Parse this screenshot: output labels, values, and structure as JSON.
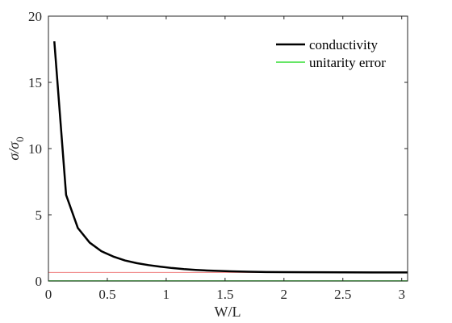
{
  "chart_data": {
    "type": "line",
    "xlabel": "W/L",
    "ylabel": "σ/σ",
    "ylabel_subscript": "0",
    "xlim": [
      0,
      3.05
    ],
    "ylim": [
      0,
      20
    ],
    "xticks": [
      0,
      0.5,
      1,
      1.5,
      2,
      2.5,
      3
    ],
    "xtick_labels": [
      "0",
      "0.5",
      "1",
      "1.5",
      "2",
      "2.5",
      "3"
    ],
    "yticks": [
      0,
      5,
      10,
      15,
      20
    ],
    "ytick_labels": [
      "0",
      "5",
      "10",
      "15",
      "20"
    ],
    "grid": false,
    "legend": "top-right",
    "series": [
      {
        "name": "conductivity",
        "color": "#000000",
        "x": [
          0.05,
          0.15,
          0.25,
          0.35,
          0.45,
          0.55,
          0.65,
          0.75,
          0.85,
          0.95,
          1.05,
          1.15,
          1.25,
          1.35,
          1.45,
          1.55,
          1.7,
          1.85,
          2.0,
          2.25,
          2.5,
          2.75,
          3.05
        ],
        "values": [
          18.1,
          6.5,
          4.0,
          2.9,
          2.25,
          1.85,
          1.55,
          1.35,
          1.2,
          1.08,
          0.98,
          0.9,
          0.84,
          0.79,
          0.76,
          0.73,
          0.7,
          0.68,
          0.67,
          0.66,
          0.655,
          0.65,
          0.65
        ]
      },
      {
        "name": "unitarity error",
        "color": "#33dd33",
        "x": [
          0,
          3.05
        ],
        "values": [
          0.01,
          0.01
        ]
      }
    ],
    "reference_line": {
      "y": 0.65,
      "color": "#f08080"
    }
  }
}
